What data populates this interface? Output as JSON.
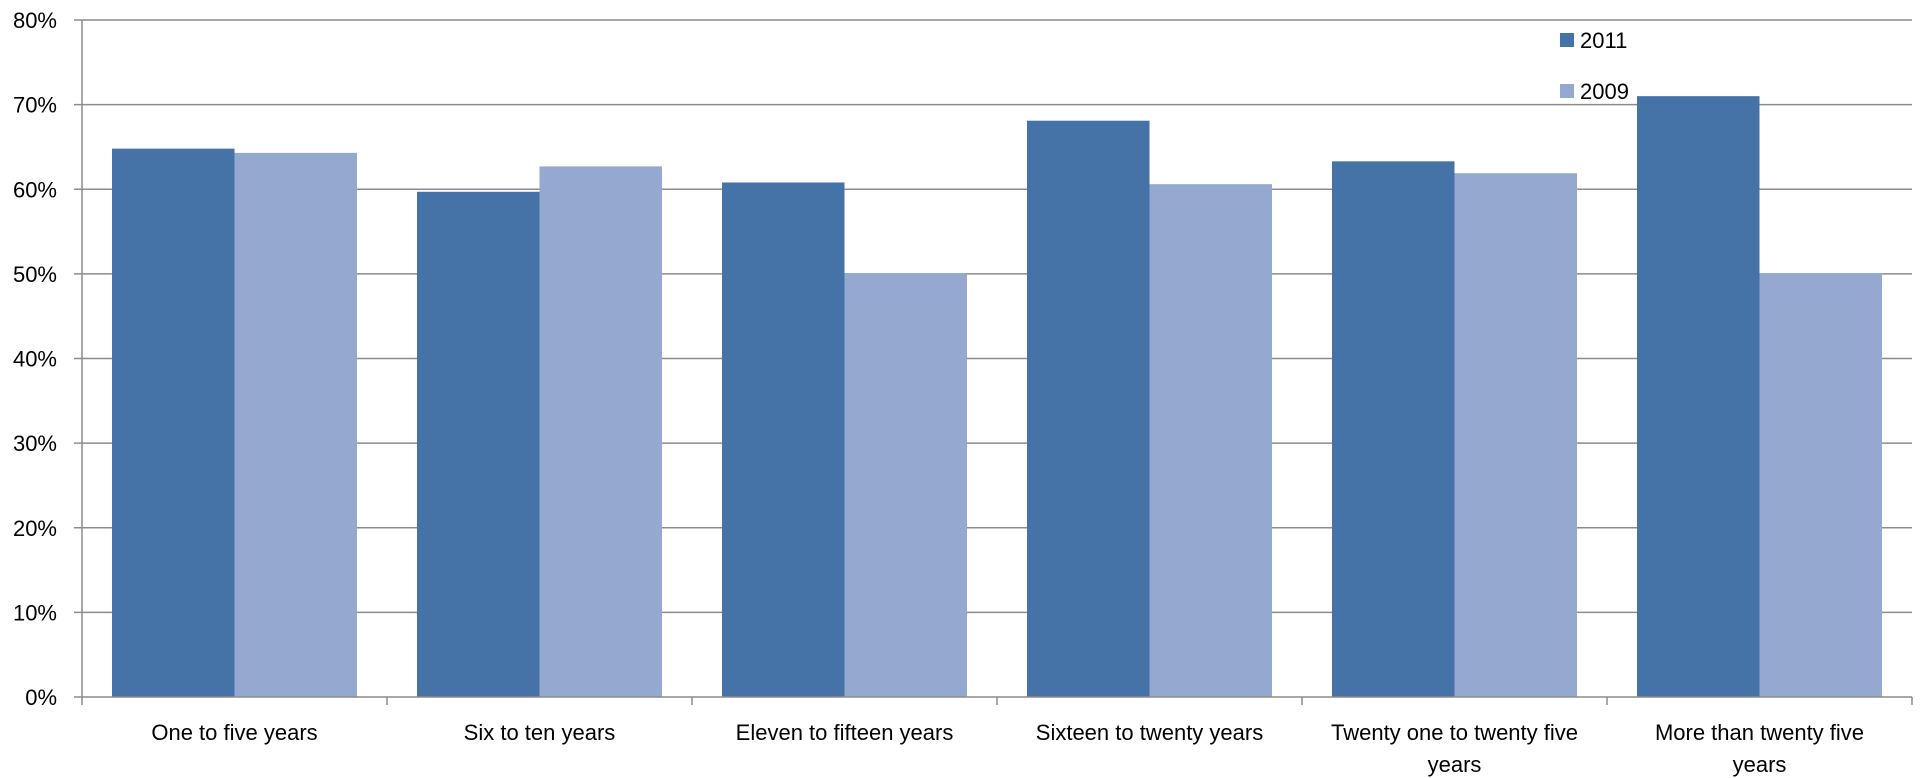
{
  "chart_data": {
    "type": "bar",
    "categories": [
      [
        "One to five years"
      ],
      [
        "Six to ten years"
      ],
      [
        "Eleven to fifteen years"
      ],
      [
        "Sixteen to twenty years"
      ],
      [
        "Twenty one to twenty five",
        "years"
      ],
      [
        "More than twenty five",
        "years"
      ]
    ],
    "series": [
      {
        "name": "2011",
        "color": "#4573A7",
        "values": [
          0.648,
          0.597,
          0.608,
          0.681,
          0.633,
          0.71
        ]
      },
      {
        "name": "2009",
        "color": "#95A9D0",
        "values": [
          0.643,
          0.627,
          0.501,
          0.606,
          0.619,
          0.501
        ]
      }
    ],
    "ylim": [
      0,
      0.8
    ],
    "yticks": [
      "0%",
      "10%",
      "20%",
      "30%",
      "40%",
      "50%",
      "60%",
      "70%",
      "80%"
    ],
    "grid": true,
    "legend_position": "top-right",
    "title": "",
    "xlabel": "",
    "ylabel": ""
  }
}
